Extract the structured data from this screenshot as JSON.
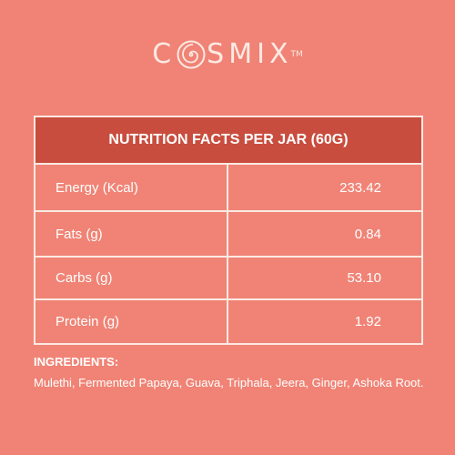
{
  "brand": {
    "name_rest": "SMIX",
    "tm": "TM",
    "logo_letters": "C O S M I X"
  },
  "nutrition": {
    "title": "NUTRITION FACTS PER JAR (60G)",
    "rows": [
      {
        "label": "Energy (Kcal)",
        "value": "233.42"
      },
      {
        "label": "Fats (g)",
        "value": "0.84"
      },
      {
        "label": "Carbs (g)",
        "value": "53.10"
      },
      {
        "label": "Protein (g)",
        "value": "1.92"
      }
    ]
  },
  "ingredients": {
    "title": "INGREDIENTS:",
    "text": "Mulethi, Fermented Papaya, Guava, Triphala, Jeera, Ginger, Ashoka Root."
  },
  "colors": {
    "background": "#f08375",
    "header": "#c94d3e",
    "border": "#fbe9e3",
    "text": "#ffffff"
  }
}
